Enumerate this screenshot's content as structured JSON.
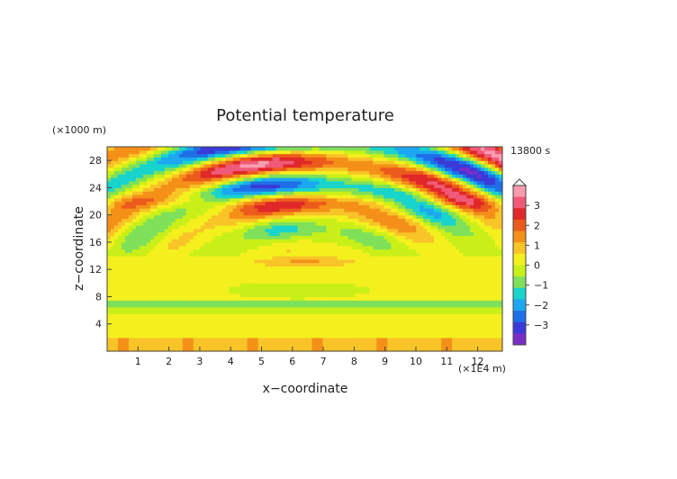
{
  "chart_data": {
    "type": "heatmap",
    "title": "Potential temperature",
    "xlabel": "x−coordinate",
    "ylabel": "z−coordinate",
    "x_unit": "(×1E4 m)",
    "y_unit": "(×1000 m)",
    "time_label": "13800 s",
    "xlim": [
      0,
      12.8
    ],
    "ylim": [
      0,
      30
    ],
    "x_ticks": [
      "1",
      "2",
      "3",
      "4",
      "5",
      "6",
      "7",
      "8",
      "9",
      "10",
      "11",
      "12"
    ],
    "y_ticks": [
      "4",
      "8",
      "12",
      "16",
      "20",
      "24",
      "28"
    ],
    "colorbar": {
      "ticks": [
        "3",
        "2",
        "1",
        "0",
        "−1",
        "−2",
        "−3"
      ],
      "range": [
        -4,
        4
      ],
      "colors": [
        "#7a2ec8",
        "#3a3ad8",
        "#1f6fe8",
        "#1ca8f0",
        "#18d4cc",
        "#7fe05a",
        "#c8f018",
        "#f4f01e",
        "#f8c428",
        "#f49018",
        "#ec5a1c",
        "#e02828",
        "#f05a78",
        "#f89cb0"
      ],
      "extend": "max"
    }
  }
}
